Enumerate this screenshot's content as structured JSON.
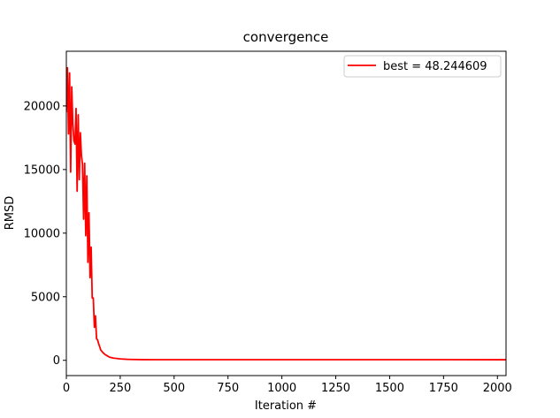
{
  "chart_data": {
    "type": "line",
    "title": "convergence",
    "xlabel": "Iteration #",
    "ylabel": "RMSD",
    "xlim": [
      0,
      2040
    ],
    "ylim": [
      -1200,
      24300
    ],
    "xticks": [
      0,
      250,
      500,
      750,
      1000,
      1250,
      1500,
      1750,
      2000
    ],
    "yticks": [
      0,
      5000,
      10000,
      15000,
      20000
    ],
    "grid": false,
    "legend_position": "top-right",
    "series": [
      {
        "name": "best = 48.244609",
        "color": "#ff0000",
        "x": [
          0,
          5,
          10,
          15,
          20,
          25,
          30,
          35,
          40,
          45,
          50,
          55,
          60,
          65,
          70,
          75,
          80,
          85,
          90,
          95,
          100,
          105,
          110,
          115,
          120,
          125,
          130,
          135,
          140,
          145,
          150,
          160,
          170,
          180,
          190,
          200,
          220,
          250,
          280,
          300,
          350,
          400,
          500,
          700,
          1000,
          1500,
          2040
        ],
        "y": [
          19500,
          23000,
          17800,
          22600,
          14800,
          21500,
          18600,
          17300,
          17000,
          19800,
          13300,
          19300,
          14200,
          17900,
          16100,
          15400,
          11100,
          15500,
          9800,
          14500,
          7700,
          11600,
          6500,
          8900,
          4900,
          4900,
          2600,
          3500,
          1700,
          1600,
          1300,
          800,
          600,
          450,
          350,
          250,
          170,
          110,
          80,
          70,
          55,
          50,
          49,
          48.5,
          48.3,
          48.25,
          48.244609
        ]
      }
    ]
  }
}
